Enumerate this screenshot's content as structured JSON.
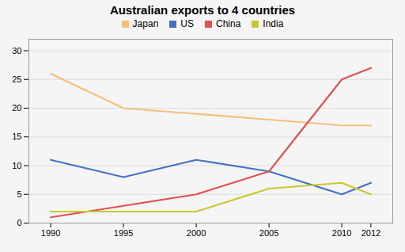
{
  "chart_data": {
    "type": "line",
    "title": "Australian exports to 4 countries",
    "x": [
      1990,
      1995,
      2000,
      2005,
      2010,
      2012
    ],
    "series": [
      {
        "name": "Japan",
        "color": "#F5C07A",
        "values": [
          26,
          20,
          19,
          18,
          17,
          17
        ]
      },
      {
        "name": "US",
        "color": "#4472C4",
        "values": [
          11,
          8,
          11,
          9,
          5,
          7
        ]
      },
      {
        "name": "China",
        "color": "#E05252",
        "values": [
          1,
          3,
          5,
          9,
          25,
          27
        ]
      },
      {
        "name": "India",
        "color": "#C8C830",
        "values": [
          2,
          2,
          2,
          6,
          7,
          5
        ]
      }
    ],
    "xlim": [
      1988.5,
      2013.5
    ],
    "xticks": [
      1990,
      1995,
      2000,
      2005,
      2010,
      2012
    ],
    "ylim": [
      0,
      32
    ],
    "yticks": [
      0,
      5,
      10,
      15,
      20,
      25,
      30
    ],
    "grid": true,
    "legend": "top"
  }
}
